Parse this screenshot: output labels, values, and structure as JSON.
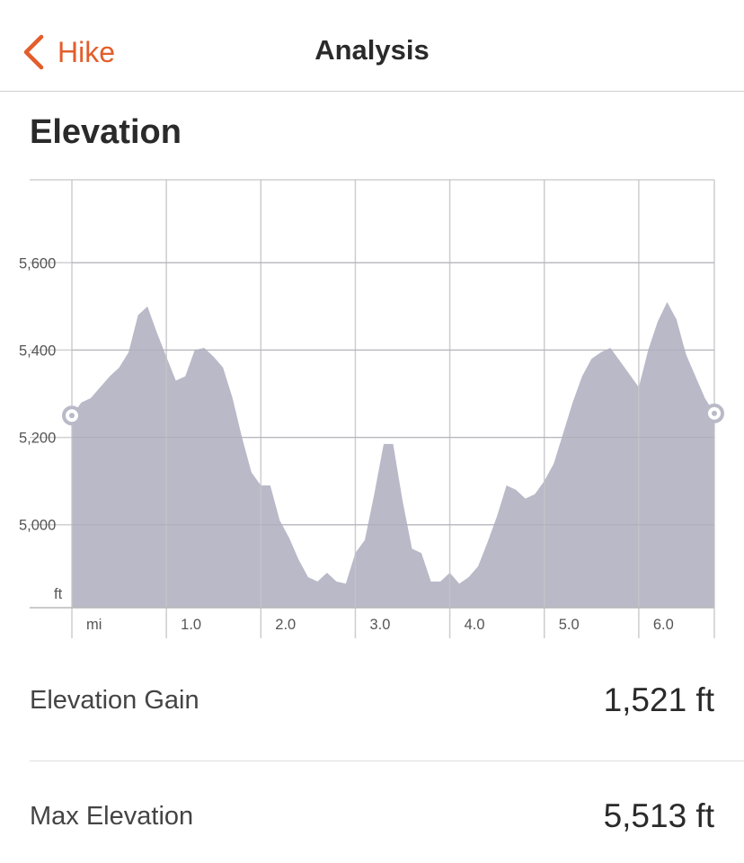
{
  "nav": {
    "back_label": "Hike",
    "title": "Analysis"
  },
  "section": {
    "title": "Elevation"
  },
  "colors": {
    "accent": "#e35d2b",
    "area_fill": "#b9b9c8",
    "grid": "#d0d0d0"
  },
  "chart_data": {
    "type": "area",
    "title": "",
    "xlabel": "mi",
    "ylabel": "ft",
    "xlim": [
      0.0,
      6.8
    ],
    "ylim": [
      4810,
      5790
    ],
    "y_ticks": [
      5000,
      5200,
      5400,
      5600
    ],
    "y_tick_labels": [
      "5,000",
      "5,200",
      "5,400",
      "5,600"
    ],
    "x_ticks": [
      1.0,
      2.0,
      3.0,
      4.0,
      5.0,
      6.0
    ],
    "x_tick_labels": [
      "1.0",
      "2.0",
      "3.0",
      "4.0",
      "5.0",
      "6.0"
    ],
    "grid": true,
    "series": [
      {
        "x": [
          0.0,
          0.1,
          0.2,
          0.3,
          0.4,
          0.5,
          0.6,
          0.7,
          0.8,
          0.9,
          1.0,
          1.1,
          1.2,
          1.3,
          1.4,
          1.5,
          1.6,
          1.7,
          1.8,
          1.9,
          2.0,
          2.1,
          2.2,
          2.3,
          2.4,
          2.5,
          2.6,
          2.7,
          2.8,
          2.9,
          3.0,
          3.1,
          3.2,
          3.3,
          3.4,
          3.5,
          3.6,
          3.7,
          3.8,
          3.9,
          4.0,
          4.1,
          4.2,
          4.3,
          4.4,
          4.5,
          4.6,
          4.7,
          4.8,
          4.9,
          5.0,
          5.1,
          5.2,
          5.3,
          5.4,
          5.5,
          5.6,
          5.7,
          5.8,
          5.9,
          6.0,
          6.1,
          6.2,
          6.3,
          6.4,
          6.5,
          6.6,
          6.7,
          6.8
        ],
        "y": [
          5250,
          5280,
          5290,
          5315,
          5340,
          5360,
          5395,
          5480,
          5500,
          5440,
          5385,
          5330,
          5340,
          5400,
          5405,
          5385,
          5360,
          5290,
          5200,
          5120,
          5090,
          5090,
          5010,
          4970,
          4920,
          4880,
          4870,
          4890,
          4870,
          4865,
          4935,
          4965,
          5070,
          5185,
          5185,
          5055,
          4945,
          4935,
          4870,
          4870,
          4890,
          4865,
          4880,
          4905,
          4960,
          5020,
          5090,
          5080,
          5060,
          5070,
          5100,
          5140,
          5210,
          5280,
          5340,
          5380,
          5395,
          5405,
          5375,
          5345,
          5315,
          5400,
          5465,
          5510,
          5470,
          5390,
          5340,
          5290,
          5255
        ]
      }
    ]
  },
  "stats": [
    {
      "label": "Elevation Gain",
      "value": "1,521 ft"
    },
    {
      "label": "Max Elevation",
      "value": "5,513 ft"
    }
  ]
}
